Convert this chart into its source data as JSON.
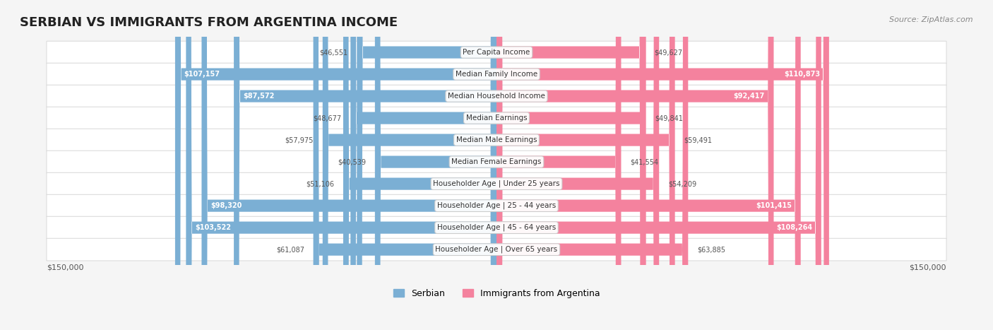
{
  "title": "SERBIAN VS IMMIGRANTS FROM ARGENTINA INCOME",
  "source": "Source: ZipAtlas.com",
  "categories": [
    "Per Capita Income",
    "Median Family Income",
    "Median Household Income",
    "Median Earnings",
    "Median Male Earnings",
    "Median Female Earnings",
    "Householder Age | Under 25 years",
    "Householder Age | 25 - 44 years",
    "Householder Age | 45 - 64 years",
    "Householder Age | Over 65 years"
  ],
  "serbian_values": [
    46551,
    107157,
    87572,
    48677,
    57975,
    40539,
    51106,
    98320,
    103522,
    61087
  ],
  "argentina_values": [
    49627,
    110873,
    92417,
    49841,
    59491,
    41554,
    54209,
    101415,
    108264,
    63885
  ],
  "serbian_labels": [
    "$46,551",
    "$107,157",
    "$87,572",
    "$48,677",
    "$57,975",
    "$40,539",
    "$51,106",
    "$98,320",
    "$103,522",
    "$61,087"
  ],
  "argentina_labels": [
    "$49,627",
    "$110,873",
    "$92,417",
    "$49,841",
    "$59,491",
    "$41,554",
    "$54,209",
    "$101,415",
    "$108,264",
    "$63,885"
  ],
  "serbian_color": "#7bafd4",
  "argentina_color": "#f4829e",
  "serbian_label_dark": [
    "$46,551",
    "$87,572",
    "$48,677",
    "$57,975",
    "$40,539",
    "$51,106",
    "$61,087"
  ],
  "max_value": 150000,
  "bar_height": 0.55,
  "background_color": "#f5f5f5",
  "row_bg_color": "#ffffff",
  "legend_serbian": "Serbian",
  "legend_argentina": "Immigrants from Argentina",
  "xlabel_left": "$150,000",
  "xlabel_right": "$150,000"
}
